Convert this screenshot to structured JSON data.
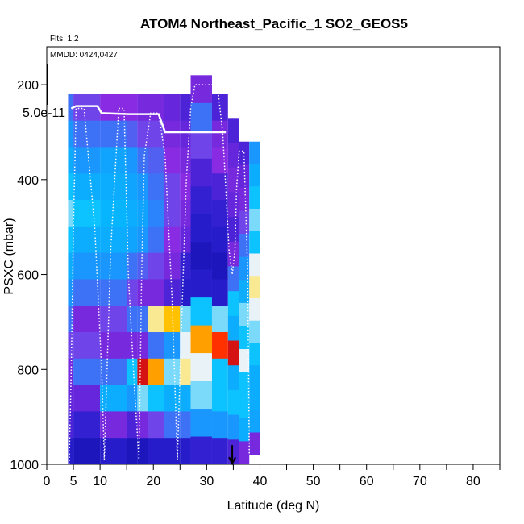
{
  "chart_data": {
    "type": "heatmap",
    "title": "ATOM4 Northeast_Pacific_1 SO2_GEOS5",
    "flights_label": "Flts: 1,2",
    "dates_label": "MMDD: 0424,0427",
    "xlabel": "Latitude (deg N)",
    "ylabel": "PSXC (mbar)",
    "colorbar_max_label": "5.0e-11",
    "xlim": [
      0,
      85
    ],
    "ylim": [
      1000,
      120
    ],
    "x_ticks": [
      0,
      5,
      10,
      20,
      30,
      40,
      50,
      60,
      70,
      80
    ],
    "x_minor_ticks": [
      15,
      25,
      35,
      45,
      55,
      65,
      75,
      85
    ],
    "y_ticks": [
      200,
      400,
      600,
      800,
      1000
    ],
    "colorscale": [
      "#00008b",
      "#2a1fd0",
      "#8a2be2",
      "#1e90ff",
      "#00bfff",
      "#f5f5f5",
      "#ffd700",
      "#ff8c00",
      "#ff0000",
      "#b22222"
    ],
    "columns": [
      {
        "lat0": 4,
        "lat1": 5,
        "top": 220,
        "base": 1000,
        "layers": [
          0.3,
          0.35,
          0.4,
          0.45,
          0.5,
          0.45,
          0.4,
          0.35,
          0.3,
          0.25,
          0.2,
          0.18,
          0.15,
          0.1
        ]
      },
      {
        "lat0": 5,
        "lat1": 10,
        "top": 220,
        "base": 1000,
        "layers": [
          0.25,
          0.3,
          0.35,
          0.4,
          0.45,
          0.4,
          0.35,
          0.3,
          0.2,
          0.25,
          0.3,
          0.18,
          0.12,
          0.08
        ]
      },
      {
        "lat0": 10,
        "lat1": 15,
        "top": 220,
        "base": 1000,
        "layers": [
          0.22,
          0.3,
          0.38,
          0.4,
          0.42,
          0.4,
          0.35,
          0.3,
          0.25,
          0.2,
          0.3,
          0.4,
          0.2,
          0.1
        ]
      },
      {
        "lat0": 15,
        "lat1": 17,
        "top": 220,
        "base": 1000,
        "layers": [
          0.22,
          0.28,
          0.35,
          0.38,
          0.4,
          0.38,
          0.3,
          0.25,
          0.3,
          0.2,
          0.45,
          0.35,
          0.15,
          0.08
        ]
      },
      {
        "lat0": 17,
        "lat1": 19,
        "top": 220,
        "base": 1000,
        "layers": [
          0.2,
          0.25,
          0.3,
          0.35,
          0.38,
          0.35,
          0.28,
          0.2,
          0.3,
          0.2,
          0.95,
          0.5,
          0.2,
          0.08
        ]
      },
      {
        "lat0": 19,
        "lat1": 22,
        "top": 220,
        "base": 1000,
        "layers": [
          0.2,
          0.25,
          0.28,
          0.3,
          0.32,
          0.3,
          0.25,
          0.2,
          0.6,
          0.3,
          0.75,
          0.45,
          0.25,
          0.1
        ]
      },
      {
        "lat0": 22,
        "lat1": 25,
        "top": 220,
        "base": 1000,
        "layers": [
          0.18,
          0.2,
          0.22,
          0.25,
          0.25,
          0.22,
          0.2,
          0.15,
          0.7,
          0.35,
          0.5,
          0.4,
          0.3,
          0.1
        ]
      },
      {
        "lat0": 25,
        "lat1": 27,
        "top": 220,
        "base": 1000,
        "layers": [
          0.15,
          0.18,
          0.2,
          0.22,
          0.2,
          0.18,
          0.12,
          0.1,
          0.5,
          0.55,
          0.6,
          0.4,
          0.3,
          0.1
        ]
      },
      {
        "lat0": 27,
        "lat1": 31,
        "top": 180,
        "base": 1000,
        "layers": [
          0.2,
          0.3,
          0.25,
          0.15,
          0.12,
          0.1,
          0.08,
          0.1,
          0.45,
          0.75,
          0.55,
          0.5,
          0.35,
          0.12
        ]
      },
      {
        "lat0": 31,
        "lat1": 34,
        "top": 220,
        "base": 1000,
        "layers": [
          0.15,
          0.2,
          0.22,
          0.15,
          0.12,
          0.1,
          0.08,
          0.1,
          0.5,
          0.85,
          0.45,
          0.45,
          0.35,
          0.12
        ]
      },
      {
        "lat0": 34,
        "lat1": 36,
        "top": 270,
        "base": 1000,
        "layers": [
          0.15,
          0.18,
          0.2,
          0.18,
          0.15,
          0.2,
          0.3,
          0.45,
          0.4,
          0.95,
          0.4,
          0.45,
          0.35,
          0.15
        ]
      },
      {
        "lat0": 36,
        "lat1": 38,
        "top": 320,
        "base": 1000,
        "layers": [
          0.15,
          0.18,
          0.2,
          0.25,
          0.3,
          0.35,
          0.4,
          0.5,
          0.45,
          0.55,
          0.45,
          0.45,
          0.4,
          0.2
        ]
      },
      {
        "lat0": 38,
        "lat1": 40,
        "top": 320,
        "base": 980,
        "layers": [
          0.35,
          0.4,
          0.45,
          0.5,
          0.45,
          0.55,
          0.6,
          0.55,
          0.5,
          0.45,
          0.4,
          0.4,
          0.38,
          0.2
        ]
      }
    ],
    "flight_track": {
      "lat": [
        4.2,
        4.6,
        5.0,
        5.5,
        7.0,
        9.0,
        10.3,
        10.8,
        12.0,
        13.5,
        14.5,
        15.3,
        16.5,
        17.3,
        17.8,
        18.3,
        19.5,
        21.0,
        22.2,
        23.5,
        24.5,
        25.3,
        26.2,
        27.0,
        27.8,
        29.0,
        32.0,
        33.0,
        33.6,
        34.2,
        34.8,
        35.3,
        35.6,
        36.1,
        37.0,
        37.7,
        38.0
      ],
      "p": [
        1000,
        800,
        500,
        250,
        250,
        500,
        800,
        990,
        550,
        250,
        250,
        600,
        850,
        990,
        600,
        350,
        260,
        260,
        350,
        650,
        990,
        700,
        400,
        250,
        200,
        200,
        200,
        300,
        420,
        550,
        600,
        550,
        420,
        340,
        340,
        600,
        980
      ]
    },
    "white_line": {
      "lat": [
        4.6,
        5.5,
        9.5,
        10.3,
        15.3,
        17.3,
        21.0,
        22.2,
        33.6
      ],
      "p": [
        250,
        245,
        245,
        260,
        262,
        262,
        262,
        300,
        300
      ]
    },
    "marker_arrow": {
      "lat": 34.8,
      "p": 990
    }
  }
}
